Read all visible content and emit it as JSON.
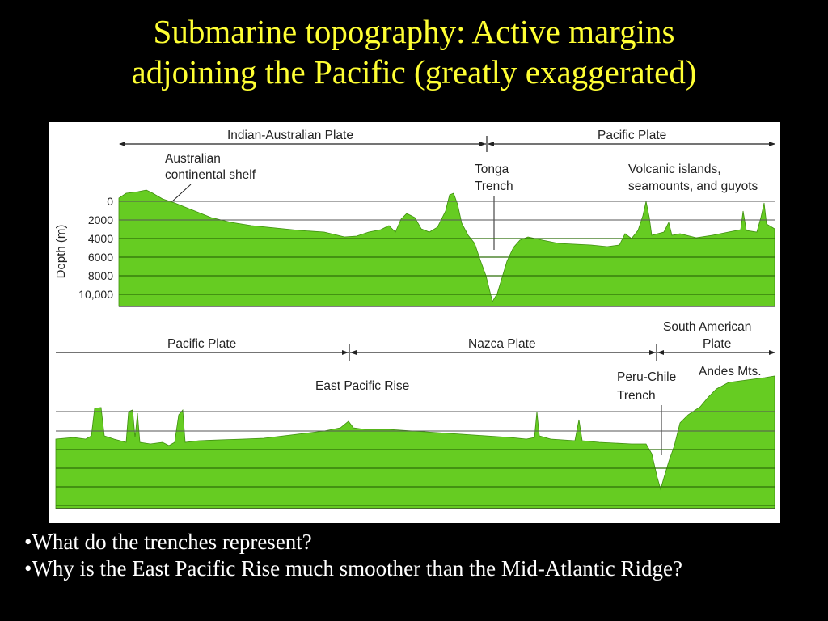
{
  "slide": {
    "title_line1": "Submarine topography: Active margins",
    "title_line2": "adjoining the Pacific (greatly exaggerated)"
  },
  "colors": {
    "title": "#ffff33",
    "terrain": "#66cc22",
    "terrain_line": "#3f8f0f",
    "background": "#000000"
  },
  "figure": {
    "top_profile": {
      "plates": [
        "Indian-Australian Plate",
        "Pacific Plate"
      ],
      "shelf_label_line1": "Australian",
      "shelf_label_line2": "continental shelf",
      "trench_label_line1": "Tonga",
      "trench_label_line2": "Trench",
      "islands_label_line1": "Volcanic islands,",
      "islands_label_line2": "seamounts, and guyots"
    },
    "bottom_profile": {
      "plates": [
        "Pacific Plate",
        "Nazca Plate"
      ],
      "south_american_line1": "South American",
      "south_american_line2": "Plate",
      "rise_label": "East Pacific Rise",
      "trench_label_line1": "Peru-Chile",
      "trench_label_line2": "Trench",
      "andes_label": "Andes Mts."
    },
    "depth_axis": {
      "title": "Depth (m)",
      "ticks": [
        "0",
        "2000",
        "4000",
        "6000",
        "8000",
        "10,000"
      ]
    }
  },
  "bullets": [
    "•What do the trenches represent?",
    "•Why is the East Pacific Rise much smoother than the Mid-Atlantic Ridge?"
  ]
}
